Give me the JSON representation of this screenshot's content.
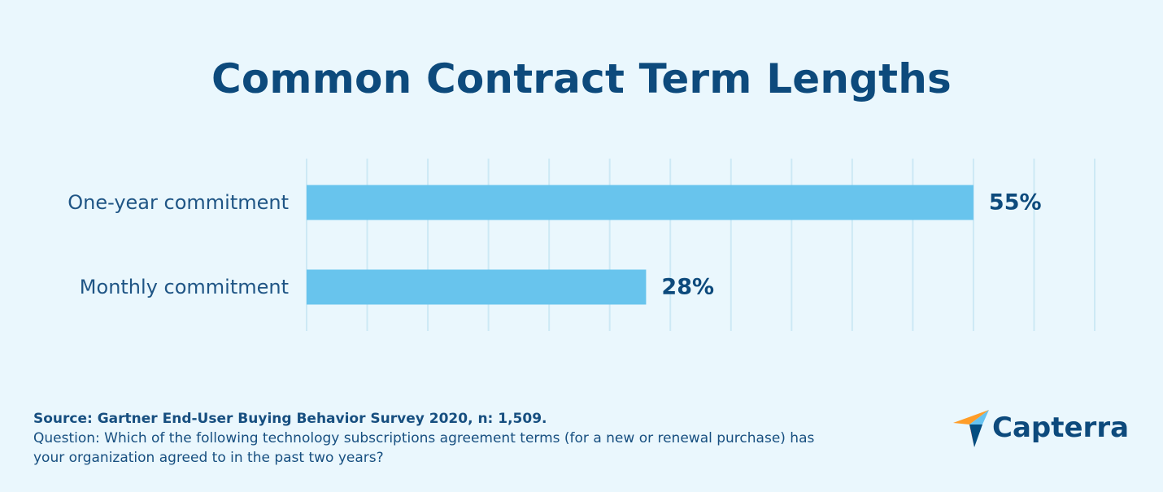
{
  "chart_data": {
    "type": "bar",
    "orientation": "horizontal",
    "title": "Common Contract Term Lengths",
    "categories": [
      "One-year commitment",
      "Monthly commitment"
    ],
    "values": [
      55,
      28
    ],
    "value_labels": [
      "55%",
      "28%"
    ],
    "unit": "%",
    "xlim": [
      0,
      65
    ],
    "grid_step": 5,
    "grid": true,
    "xlabel": "",
    "ylabel": ""
  },
  "footer": {
    "source": "Source: Gartner End-User Buying Behavior Survey 2020, n: 1,509.",
    "question": "Question: Which of the following technology subscriptions agreement terms (for a new or renewal purchase) has your organization agreed to in the past two years?"
  },
  "logo": {
    "name": "Capterra"
  },
  "colors": {
    "background": "#eaf7fd",
    "bar": "#68c4ed",
    "grid": "#cde9f5",
    "text_dark": "#0d4a7c",
    "text_label": "#1f5585"
  }
}
